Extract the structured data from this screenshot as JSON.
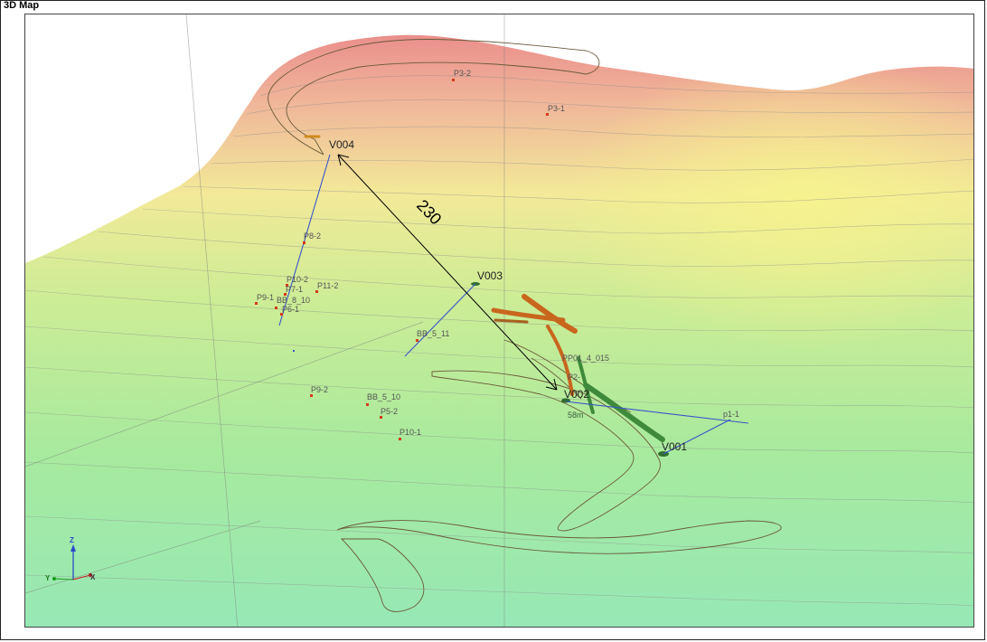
{
  "window": {
    "title": "3D Map"
  },
  "colors": {
    "terrain_high": "#e8928c",
    "terrain_mid": "#f2ec96",
    "terrain_low": "#9aeab0",
    "contour": "#8a8a8a",
    "point_marker": "#d43a1a",
    "drill_line": "#3b55c9",
    "measure_line": "#000000",
    "tunnel_outline": "#6b5a3a",
    "orebody_orange": "#c9661e",
    "orebody_green": "#3f8a3a"
  },
  "stations": [
    "V004",
    "V003",
    "V002",
    "V001"
  ],
  "points": [
    "P3-2",
    "P3-1",
    "P8-2",
    "P10-2",
    "P7-1",
    "P11-2",
    "P9-1",
    "BB_8_10",
    "P6-1",
    "BB_5_11",
    "PP01_4_015",
    "P2-",
    "P9-2",
    "BB_5_10",
    "P5-2",
    "P10-1",
    "p1-1"
  ],
  "measurement": {
    "distance": "230",
    "small_label": "58m"
  },
  "axes": {
    "z": "Z",
    "y": "Y",
    "x": "X"
  }
}
